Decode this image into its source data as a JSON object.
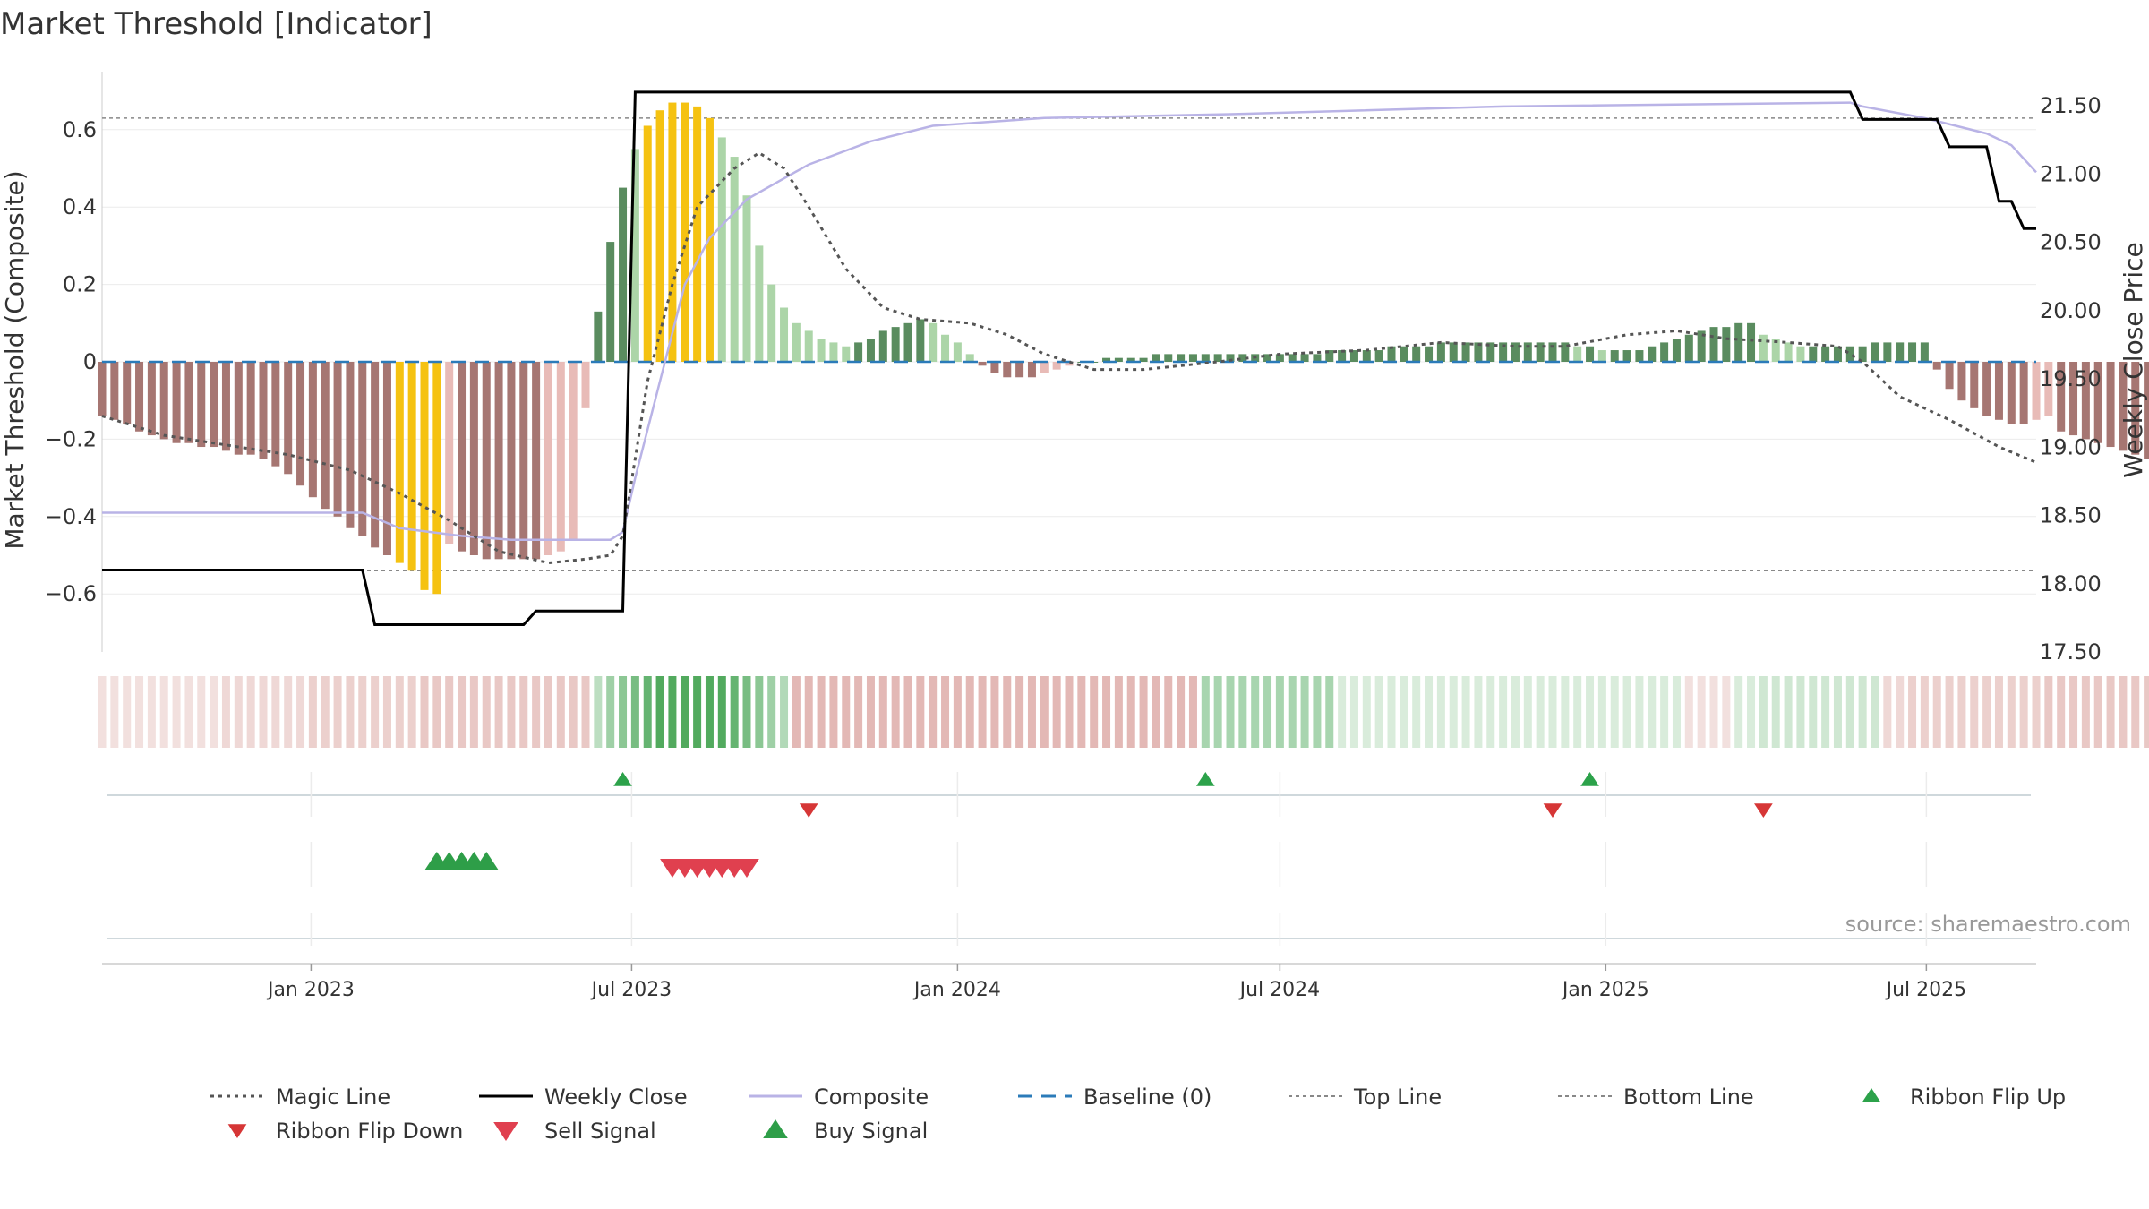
{
  "chart_data": {
    "title": "Market Threshold [Indicator]",
    "type": "bar",
    "ylabel": "Market Threshold (Composite)",
    "y2label": "Weekly Close Price",
    "ylim": [
      -0.75,
      0.75
    ],
    "y2lim": [
      17.5,
      21.75
    ],
    "yticks": [
      0.6,
      0.4,
      0.2,
      0,
      -0.2,
      -0.4,
      -0.6
    ],
    "ytick_labels": [
      "0.6",
      "0.4",
      "0.2",
      "0",
      "−0.2",
      "−0.4",
      "−0.6"
    ],
    "y2ticks": [
      21.5,
      21.0,
      20.5,
      20.0,
      19.5,
      19.0,
      18.5,
      18.0,
      17.5
    ],
    "y2tick_labels": [
      "21.50",
      "21.00",
      "20.50",
      "20.00",
      "19.50",
      "19.00",
      "18.50",
      "18.00",
      "17.50"
    ],
    "x_range": [
      "2022-09-05",
      "2025-09-01"
    ],
    "xticks": [
      {
        "date": "2023-01-01",
        "label": "Jan 2023"
      },
      {
        "date": "2023-07-01",
        "label": "Jul 2023"
      },
      {
        "date": "2024-01-01",
        "label": "Jan 2024"
      },
      {
        "date": "2024-07-01",
        "label": "Jul 2024"
      },
      {
        "date": "2025-01-01",
        "label": "Jan 2025"
      },
      {
        "date": "2025-07-01",
        "label": "Jul 2025"
      }
    ],
    "start_date": "2022-09-05",
    "top_line": 0.63,
    "bottom_line": -0.54,
    "composite_bars": [
      -0.14,
      -0.15,
      -0.16,
      -0.18,
      -0.19,
      -0.2,
      -0.21,
      -0.21,
      -0.22,
      -0.22,
      -0.23,
      -0.24,
      -0.24,
      -0.25,
      -0.27,
      -0.29,
      -0.32,
      -0.35,
      -0.38,
      -0.4,
      -0.43,
      -0.45,
      -0.48,
      -0.5,
      -0.52,
      -0.54,
      -0.59,
      -0.6,
      -0.47,
      -0.49,
      -0.5,
      -0.51,
      -0.51,
      -0.51,
      -0.51,
      -0.51,
      -0.5,
      -0.49,
      -0.46,
      -0.12,
      0.13,
      0.31,
      0.45,
      0.55,
      0.61,
      0.65,
      0.67,
      0.67,
      0.66,
      0.63,
      0.58,
      0.53,
      0.43,
      0.3,
      0.2,
      0.14,
      0.1,
      0.08,
      0.06,
      0.05,
      0.04,
      0.05,
      0.06,
      0.08,
      0.09,
      0.1,
      0.11,
      0.1,
      0.07,
      0.05,
      0.02,
      -0.01,
      -0.03,
      -0.04,
      -0.04,
      -0.04,
      -0.03,
      -0.02,
      -0.01,
      0.0,
      0.0,
      0.01,
      0.01,
      0.01,
      0.01,
      0.02,
      0.02,
      0.02,
      0.02,
      0.02,
      0.02,
      0.02,
      0.02,
      0.02,
      0.02,
      0.02,
      0.02,
      0.02,
      0.02,
      0.03,
      0.03,
      0.03,
      0.03,
      0.03,
      0.04,
      0.04,
      0.04,
      0.04,
      0.05,
      0.05,
      0.05,
      0.05,
      0.05,
      0.05,
      0.05,
      0.05,
      0.05,
      0.05,
      0.05,
      0.04,
      0.04,
      0.03,
      0.03,
      0.03,
      0.03,
      0.04,
      0.05,
      0.06,
      0.07,
      0.08,
      0.09,
      0.09,
      0.1,
      0.1,
      0.07,
      0.06,
      0.05,
      0.04,
      0.04,
      0.04,
      0.04,
      0.04,
      0.04,
      0.05,
      0.05,
      0.05,
      0.05,
      0.05,
      -0.02,
      -0.07,
      -0.1,
      -0.12,
      -0.14,
      -0.15,
      -0.16,
      -0.16,
      -0.15,
      -0.14,
      -0.18,
      -0.19,
      -0.2,
      -0.21,
      -0.22,
      -0.23,
      -0.24,
      -0.25,
      -0.29,
      -0.27,
      -0.27,
      -0.26
    ],
    "ribbon_intensity": [
      0.2,
      0.2,
      0.2,
      0.2,
      0.2,
      0.2,
      0.2,
      0.2,
      0.2,
      0.2,
      0.25,
      0.25,
      0.25,
      0.25,
      0.25,
      0.25,
      0.25,
      0.3,
      0.3,
      0.3,
      0.3,
      0.3,
      0.3,
      0.3,
      0.3,
      0.3,
      0.35,
      0.35,
      0.35,
      0.35,
      0.35,
      0.35,
      0.35,
      0.35,
      0.35,
      0.35,
      0.35,
      0.35,
      0.35,
      0.35,
      0.35,
      0.5,
      0.6,
      0.7,
      0.8,
      0.9,
      0.9,
      0.9,
      0.9,
      0.9,
      0.9,
      0.8,
      0.7,
      0.6,
      0.5,
      0.4,
      0.45,
      0.45,
      0.45,
      0.45,
      0.45,
      0.45,
      0.45,
      0.45,
      0.45,
      0.45,
      0.45,
      0.45,
      0.45,
      0.45,
      0.45,
      0.45,
      0.45,
      0.45,
      0.45,
      0.45,
      0.45,
      0.45,
      0.45,
      0.45,
      0.45,
      0.45,
      0.45,
      0.45,
      0.45,
      0.45,
      0.45,
      0.45,
      0.45,
      0.45,
      0.45,
      0.45,
      0.45,
      0.45,
      0.45,
      0.45,
      0.45,
      0.45,
      0.45,
      0.45,
      0.2,
      0.2,
      0.2,
      0.2,
      0.2,
      0.2,
      0.2,
      0.2,
      0.2,
      0.2,
      0.2,
      0.2,
      0.2,
      0.2,
      0.2,
      0.2,
      0.2,
      0.2,
      0.2,
      0.2,
      0.2,
      0.2,
      0.2,
      0.2,
      0.2,
      0.2,
      0.2,
      0.2,
      0.2,
      0.2,
      0.2,
      0.2,
      0.2,
      0.2,
      0.25,
      0.25,
      0.25,
      0.25,
      0.25,
      0.25,
      0.25,
      0.25,
      0.25,
      0.25,
      0.25,
      0.25,
      0.3,
      0.3,
      0.3,
      0.3,
      0.3,
      0.3,
      0.3,
      0.3,
      0.3,
      0.3,
      0.3,
      0.35,
      0.35,
      0.35,
      0.35,
      0.35,
      0.35,
      0.35,
      0.35,
      0.35,
      0.35,
      0.35,
      0.35,
      0.35,
      0.35,
      0.35,
      0.35,
      0.35,
      0.35
    ],
    "ribbon_sign": [
      "neg",
      "neg",
      "neg",
      "neg",
      "neg",
      "neg",
      "neg",
      "neg",
      "neg",
      "neg",
      "neg",
      "neg",
      "neg",
      "neg",
      "neg",
      "neg",
      "neg",
      "neg",
      "neg",
      "neg",
      "neg",
      "neg",
      "neg",
      "neg",
      "neg",
      "neg",
      "neg",
      "neg",
      "neg",
      "neg",
      "neg",
      "neg",
      "neg",
      "neg",
      "neg",
      "neg",
      "neg",
      "neg",
      "neg",
      "neg",
      "pos",
      "pos",
      "pos",
      "pos",
      "pos",
      "pos",
      "pos",
      "pos",
      "pos",
      "pos",
      "pos",
      "pos",
      "pos",
      "pos",
      "pos",
      "pos",
      "neg",
      "neg",
      "neg",
      "neg",
      "neg",
      "neg",
      "neg",
      "neg",
      "neg",
      "neg",
      "neg",
      "neg",
      "neg",
      "neg",
      "neg",
      "neg",
      "neg",
      "neg",
      "neg",
      "neg",
      "neg",
      "neg",
      "neg",
      "neg",
      "neg",
      "neg",
      "neg",
      "neg",
      "neg",
      "neg",
      "neg",
      "neg",
      "neg",
      "pos",
      "pos",
      "pos",
      "pos",
      "pos",
      "pos",
      "pos",
      "pos",
      "pos",
      "pos",
      "pos",
      "pos",
      "pos",
      "pos",
      "pos",
      "pos",
      "pos",
      "pos",
      "pos",
      "pos",
      "pos",
      "pos",
      "pos",
      "pos",
      "pos",
      "pos",
      "pos",
      "pos",
      "pos",
      "pos",
      "pos",
      "pos",
      "pos",
      "pos",
      "pos",
      "pos",
      "pos",
      "pos",
      "pos",
      "neg",
      "neg",
      "neg",
      "neg",
      "pos",
      "pos",
      "pos",
      "pos",
      "pos",
      "pos",
      "pos",
      "pos",
      "pos",
      "pos",
      "pos",
      "pos",
      "neg",
      "neg",
      "neg",
      "neg",
      "neg",
      "neg",
      "neg",
      "neg",
      "neg",
      "neg",
      "neg",
      "neg",
      "neg",
      "neg",
      "neg",
      "neg",
      "neg",
      "neg",
      "neg",
      "neg",
      "neg",
      "neg",
      "neg",
      "neg",
      "neg",
      "neg",
      "neg",
      "neg",
      "neg",
      "neg",
      "neg"
    ],
    "magic_line": [
      {
        "date": "2022-09-05",
        "y": -0.14
      },
      {
        "date": "2022-10-10",
        "y": -0.19
      },
      {
        "date": "2022-11-21",
        "y": -0.22
      },
      {
        "date": "2022-12-19",
        "y": -0.24
      },
      {
        "date": "2023-01-23",
        "y": -0.28
      },
      {
        "date": "2023-02-20",
        "y": -0.34
      },
      {
        "date": "2023-03-20",
        "y": -0.41
      },
      {
        "date": "2023-04-17",
        "y": -0.49
      },
      {
        "date": "2023-05-15",
        "y": -0.52
      },
      {
        "date": "2023-06-05",
        "y": -0.51
      },
      {
        "date": "2023-06-19",
        "y": -0.5
      },
      {
        "date": "2023-06-26",
        "y": -0.45
      },
      {
        "date": "2023-07-03",
        "y": -0.25
      },
      {
        "date": "2023-07-10",
        "y": -0.05
      },
      {
        "date": "2023-07-24",
        "y": 0.2
      },
      {
        "date": "2023-08-07",
        "y": 0.4
      },
      {
        "date": "2023-08-28",
        "y": 0.5
      },
      {
        "date": "2023-09-11",
        "y": 0.54
      },
      {
        "date": "2023-09-25",
        "y": 0.5
      },
      {
        "date": "2023-10-09",
        "y": 0.4
      },
      {
        "date": "2023-10-30",
        "y": 0.24
      },
      {
        "date": "2023-11-20",
        "y": 0.14
      },
      {
        "date": "2023-12-11",
        "y": 0.11
      },
      {
        "date": "2024-01-08",
        "y": 0.1
      },
      {
        "date": "2024-01-29",
        "y": 0.07
      },
      {
        "date": "2024-02-19",
        "y": 0.02
      },
      {
        "date": "2024-03-18",
        "y": -0.02
      },
      {
        "date": "2024-04-15",
        "y": -0.02
      },
      {
        "date": "2024-05-27",
        "y": 0.0
      },
      {
        "date": "2024-07-01",
        "y": 0.02
      },
      {
        "date": "2024-08-19",
        "y": 0.03
      },
      {
        "date": "2024-09-30",
        "y": 0.05
      },
      {
        "date": "2024-11-11",
        "y": 0.04
      },
      {
        "date": "2024-12-09",
        "y": 0.04
      },
      {
        "date": "2025-01-13",
        "y": 0.07
      },
      {
        "date": "2025-02-10",
        "y": 0.08
      },
      {
        "date": "2025-03-10",
        "y": 0.06
      },
      {
        "date": "2025-04-14",
        "y": 0.05
      },
      {
        "date": "2025-05-12",
        "y": 0.04
      },
      {
        "date": "2025-05-26",
        "y": 0.0
      },
      {
        "date": "2025-06-16",
        "y": -0.09
      },
      {
        "date": "2025-07-14",
        "y": -0.15
      },
      {
        "date": "2025-08-11",
        "y": -0.22
      },
      {
        "date": "2025-09-01",
        "y": -0.26
      }
    ],
    "composite_line": [
      {
        "date": "2022-09-05",
        "y": -0.39
      },
      {
        "date": "2023-01-30",
        "y": -0.39
      },
      {
        "date": "2023-02-20",
        "y": -0.43
      },
      {
        "date": "2023-03-27",
        "y": -0.45
      },
      {
        "date": "2023-04-24",
        "y": -0.46
      },
      {
        "date": "2023-06-19",
        "y": -0.46
      },
      {
        "date": "2023-06-26",
        "y": -0.44
      },
      {
        "date": "2023-07-03",
        "y": -0.3
      },
      {
        "date": "2023-07-17",
        "y": -0.05
      },
      {
        "date": "2023-07-31",
        "y": 0.2
      },
      {
        "date": "2023-08-14",
        "y": 0.32
      },
      {
        "date": "2023-09-04",
        "y": 0.42
      },
      {
        "date": "2023-10-09",
        "y": 0.51
      },
      {
        "date": "2023-11-13",
        "y": 0.57
      },
      {
        "date": "2023-12-18",
        "y": 0.61
      },
      {
        "date": "2024-02-19",
        "y": 0.63
      },
      {
        "date": "2024-06-03",
        "y": 0.64
      },
      {
        "date": "2024-11-04",
        "y": 0.66
      },
      {
        "date": "2025-05-19",
        "y": 0.67
      },
      {
        "date": "2025-05-26",
        "y": 0.66
      },
      {
        "date": "2025-06-30",
        "y": 0.63
      },
      {
        "date": "2025-08-04",
        "y": 0.59
      },
      {
        "date": "2025-08-18",
        "y": 0.56
      },
      {
        "date": "2025-09-01",
        "y": 0.49
      }
    ],
    "weekly_close_steps": [
      {
        "date": "2022-09-05",
        "y": 18.1
      },
      {
        "date": "2023-01-30",
        "y": 18.1
      },
      {
        "date": "2023-02-06",
        "y": 17.7
      },
      {
        "date": "2023-05-01",
        "y": 17.7
      },
      {
        "date": "2023-05-08",
        "y": 17.8
      },
      {
        "date": "2023-06-26",
        "y": 17.8
      },
      {
        "date": "2023-07-03",
        "y": 21.6
      },
      {
        "date": "2025-05-19",
        "y": 21.6
      },
      {
        "date": "2025-05-26",
        "y": 21.4
      },
      {
        "date": "2025-07-07",
        "y": 21.4
      },
      {
        "date": "2025-07-14",
        "y": 21.2
      },
      {
        "date": "2025-08-04",
        "y": 21.2
      },
      {
        "date": "2025-08-11",
        "y": 20.8
      },
      {
        "date": "2025-08-18",
        "y": 20.8
      },
      {
        "date": "2025-08-25",
        "y": 20.6
      },
      {
        "date": "2025-09-01",
        "y": 20.6
      }
    ],
    "ribbon_flip_up": [
      "2023-06-26",
      "2024-05-20",
      "2024-12-23"
    ],
    "ribbon_flip_down": [
      "2023-10-09",
      "2024-12-02",
      "2025-03-31"
    ],
    "buy_signals": [
      "2023-03-13",
      "2023-03-20",
      "2023-03-27",
      "2023-04-03",
      "2023-04-10"
    ],
    "sell_signals": [
      "2023-07-24",
      "2023-07-31",
      "2023-08-07",
      "2023-08-14",
      "2023-08-21",
      "2023-08-28",
      "2023-09-04"
    ],
    "source": "source: sharemaestro.com",
    "legend": [
      {
        "label": "Magic Line",
        "style": "dotted",
        "color": "#555555"
      },
      {
        "label": "Weekly Close",
        "style": "solid",
        "color": "#000000"
      },
      {
        "label": "Composite",
        "style": "solid",
        "color": "#b9b3e6"
      },
      {
        "label": "Baseline (0)",
        "style": "dashed",
        "color": "#2b7bb9"
      },
      {
        "label": "Top Line",
        "style": "dotted-light",
        "color": "#888888"
      },
      {
        "label": "Bottom Line",
        "style": "dotted-light",
        "color": "#888888"
      },
      {
        "label": "Ribbon Flip Up",
        "style": "triangle-up",
        "color": "#2ca24a"
      },
      {
        "label": "Ribbon Flip Down",
        "style": "triangle-down",
        "color": "#d63636"
      },
      {
        "label": "Sell Signal",
        "style": "triangle-down-big",
        "color": "#e0404f"
      },
      {
        "label": "Buy Signal",
        "style": "triangle-up-big",
        "color": "#2e9e48"
      }
    ],
    "colors": {
      "pos_strong": "#5a8c5f",
      "pos_light": "#acd5a8",
      "neg_strong": "#a67672",
      "neg_light": "#e8bbb7",
      "extreme": "#f5c211",
      "ribbon_pos": "#3fa14d",
      "ribbon_neg": "#c0625a",
      "magic_line": "#555555",
      "weekly_close": "#000000",
      "composite": "#b9b3e6",
      "baseline": "#2b7bb9",
      "flip_up": "#2ca24a",
      "flip_down": "#d63636",
      "buy": "#2e9e48",
      "sell": "#e0404f"
    }
  }
}
